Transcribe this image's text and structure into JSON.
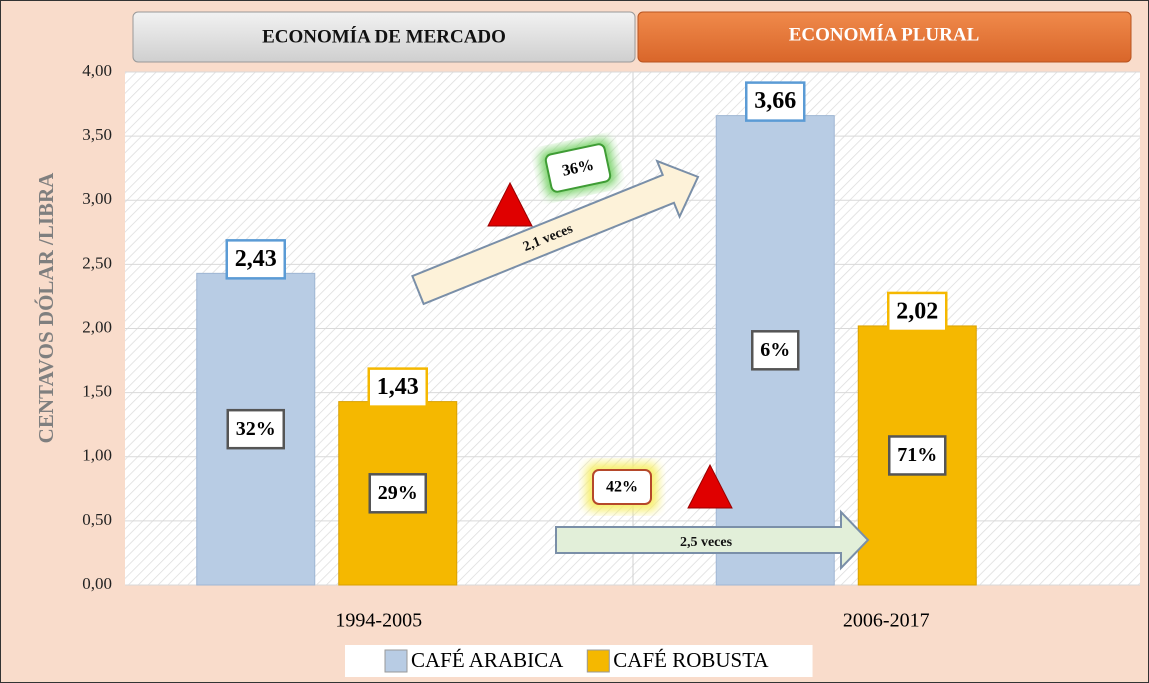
{
  "chart_data": {
    "type": "bar",
    "panels": [
      "ECONOMÍA DE MERCADO",
      "ECONOMÍA PLURAL"
    ],
    "y_label": "CENTAVOS DÓLAR /LIBRA",
    "categories": [
      "1994-2005",
      "2006-2017"
    ],
    "series": [
      {
        "name": "CAFÉ ARABICA",
        "color": "#b8cce4",
        "values": [
          2.43,
          3.66
        ],
        "value_labels": [
          "2,43",
          "3,66"
        ],
        "inner_labels": [
          "32%",
          "6%"
        ]
      },
      {
        "name": "CAFÉ ROBUSTA",
        "color": "#f5b800",
        "values": [
          1.43,
          2.02
        ],
        "value_labels": [
          "1,43",
          "2,02"
        ],
        "inner_labels": [
          "29%",
          "71%"
        ]
      }
    ],
    "annotations": [
      {
        "percent": "36%",
        "text": "2,1 veces"
      },
      {
        "percent": "42%",
        "text": "2,5 veces"
      }
    ],
    "ylim": [
      0,
      4
    ],
    "yticks": [
      {
        "value": 0,
        "label": "0,00"
      },
      {
        "value": 0.5,
        "label": "0,50"
      },
      {
        "value": 1,
        "label": "1,00"
      },
      {
        "value": 1.5,
        "label": "1,50"
      },
      {
        "value": 2,
        "label": "2,00"
      },
      {
        "value": 2.5,
        "label": "2,50"
      },
      {
        "value": 3,
        "label": "3,00"
      },
      {
        "value": 3.5,
        "label": "3,50"
      },
      {
        "value": 4,
        "label": "4,00"
      }
    ],
    "grid": true
  }
}
